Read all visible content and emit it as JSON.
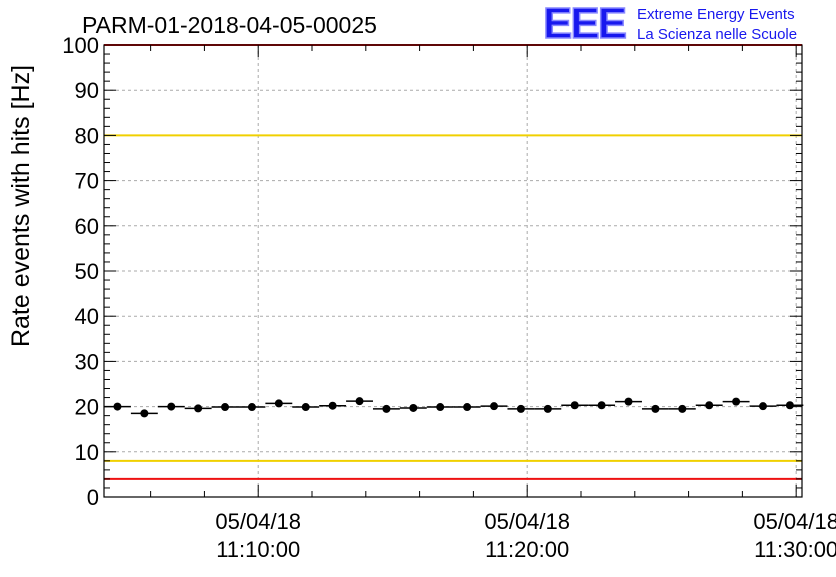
{
  "header": {
    "run_title": "PARM-01-2018-04-05-00025",
    "logo_text": "EEE",
    "logo_line1": "Extreme Energy Events",
    "logo_line2": "La Scienza nelle Scuole"
  },
  "colors": {
    "red_limit": "#ee1111",
    "yellow_limit": "#f0d000",
    "logo_blue": "#1818ee",
    "markers": "#000000",
    "grid": "#aaaaaa"
  },
  "chart_data": {
    "type": "scatter",
    "title": "PARM-01-2018-04-05-00025",
    "ylabel": "Rate events with hits [Hz]",
    "xlabel": "",
    "ylim": [
      0,
      100
    ],
    "yticks": [
      0,
      10,
      20,
      30,
      40,
      50,
      60,
      70,
      80,
      90,
      100
    ],
    "xlim": [
      "2018-04-05 11:04:16",
      "2018-04-05 11:30:13"
    ],
    "x_tick_labels": [
      {
        "time": "2018-04-05 11:10:00",
        "date": "05/04/18",
        "clock": "11:10:00"
      },
      {
        "time": "2018-04-05 11:20:00",
        "date": "05/04/18",
        "clock": "11:20:00"
      },
      {
        "time": "2018-04-05 11:30:00",
        "date": "05/04/18",
        "clock": "11:30:00"
      }
    ],
    "grid": true,
    "reference_lines": [
      {
        "y": 100,
        "color": "red"
      },
      {
        "y": 80,
        "color": "yellow"
      },
      {
        "y": 8,
        "color": "yellow"
      },
      {
        "y": 4,
        "color": "red"
      }
    ],
    "series": [
      {
        "x": [
          "11:04:46",
          "11:05:46",
          "11:06:46",
          "11:07:46",
          "11:08:46",
          "11:09:46",
          "11:10:46",
          "11:11:46",
          "11:12:46",
          "11:13:46",
          "11:14:46",
          "11:15:46",
          "11:16:46",
          "11:17:46",
          "11:18:46",
          "11:19:46",
          "11:20:46",
          "11:21:46",
          "11:22:46",
          "11:23:46",
          "11:24:46",
          "11:25:46",
          "11:26:46",
          "11:27:46",
          "11:28:46",
          "11:29:46"
        ],
        "y": [
          20.0,
          18.5,
          20.0,
          19.6,
          19.9,
          19.9,
          20.7,
          19.9,
          20.2,
          21.2,
          19.5,
          19.7,
          19.9,
          19.9,
          20.1,
          19.5,
          19.5,
          20.3,
          20.3,
          21.1,
          19.5,
          19.5,
          20.3,
          21.1,
          20.1,
          20.3
        ]
      }
    ]
  }
}
